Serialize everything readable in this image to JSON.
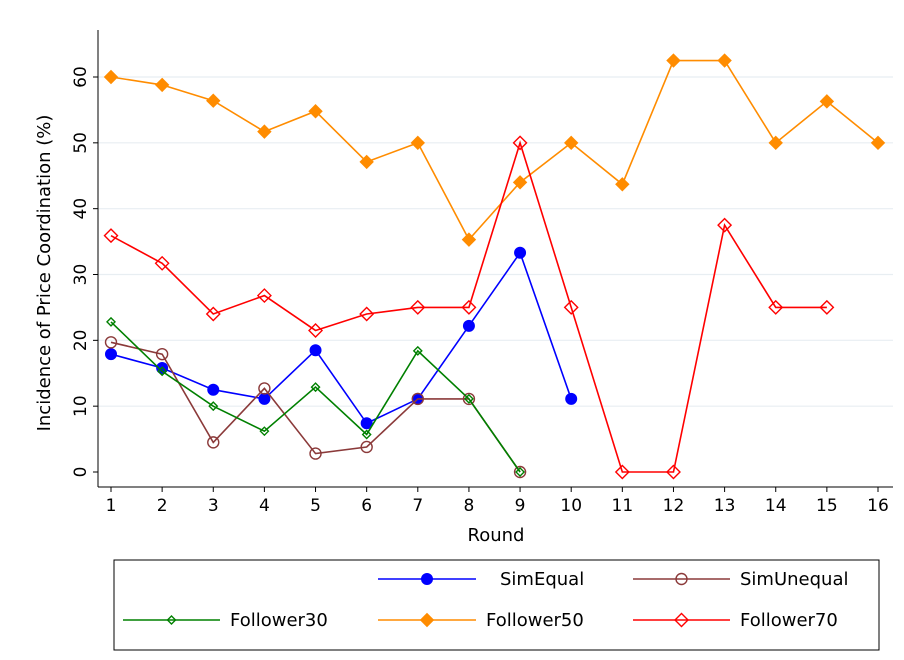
{
  "chart_data": {
    "type": "line",
    "title": "",
    "xlabel": "Round",
    "ylabel": "Incidence of Price Coordination (%)",
    "x": [
      1,
      2,
      3,
      4,
      5,
      6,
      7,
      8,
      9,
      10,
      11,
      12,
      13,
      14,
      15,
      16
    ],
    "xlim": [
      1,
      16
    ],
    "ylim": [
      0,
      60
    ],
    "yticks": [
      0,
      10,
      20,
      30,
      40,
      50,
      60
    ],
    "grid": true,
    "legend_position": "bottom",
    "series": [
      {
        "name": "SimEqual",
        "color": "#0000ff",
        "marker": "filled-circle",
        "x": [
          1,
          2,
          3,
          4,
          5,
          6,
          7,
          8,
          9,
          10
        ],
        "values": [
          17.9,
          15.8,
          12.5,
          11.1,
          18.5,
          7.4,
          11.1,
          22.2,
          33.3,
          11.1
        ]
      },
      {
        "name": "SimUnequal",
        "color": "#8b3a3a",
        "marker": "hollow-circle",
        "x": [
          1,
          2,
          3,
          4,
          5,
          6,
          7,
          8,
          9
        ],
        "values": [
          19.7,
          17.9,
          4.5,
          12.7,
          2.8,
          3.8,
          11.1,
          11.1,
          0
        ]
      },
      {
        "name": "Follower30",
        "color": "#008000",
        "marker": "hollow-diamond",
        "x": [
          1,
          2,
          3,
          4,
          5,
          6,
          7,
          8,
          9
        ],
        "values": [
          22.8,
          15.3,
          10.0,
          6.2,
          12.9,
          5.7,
          18.4,
          11.1,
          0
        ]
      },
      {
        "name": "Follower50",
        "color": "#ff8c00",
        "marker": "filled-diamond",
        "x": [
          1,
          2,
          3,
          4,
          5,
          6,
          7,
          8,
          9,
          10,
          11,
          12,
          13,
          14,
          15,
          16
        ],
        "values": [
          60.0,
          58.8,
          56.4,
          51.7,
          54.8,
          47.1,
          50.0,
          35.3,
          44.0,
          50.0,
          43.7,
          62.5,
          62.5,
          50.0,
          56.3,
          50.0
        ]
      },
      {
        "name": "Follower70",
        "color": "#ff0000",
        "marker": "hollow-diamond",
        "x": [
          1,
          2,
          3,
          4,
          5,
          6,
          7,
          8,
          9,
          10,
          11,
          12,
          13,
          14,
          15
        ],
        "values": [
          35.9,
          31.7,
          24.0,
          26.8,
          21.5,
          24.0,
          25.0,
          25.0,
          50.0,
          25.0,
          0,
          0,
          37.5,
          25.0,
          25.0
        ]
      }
    ]
  }
}
